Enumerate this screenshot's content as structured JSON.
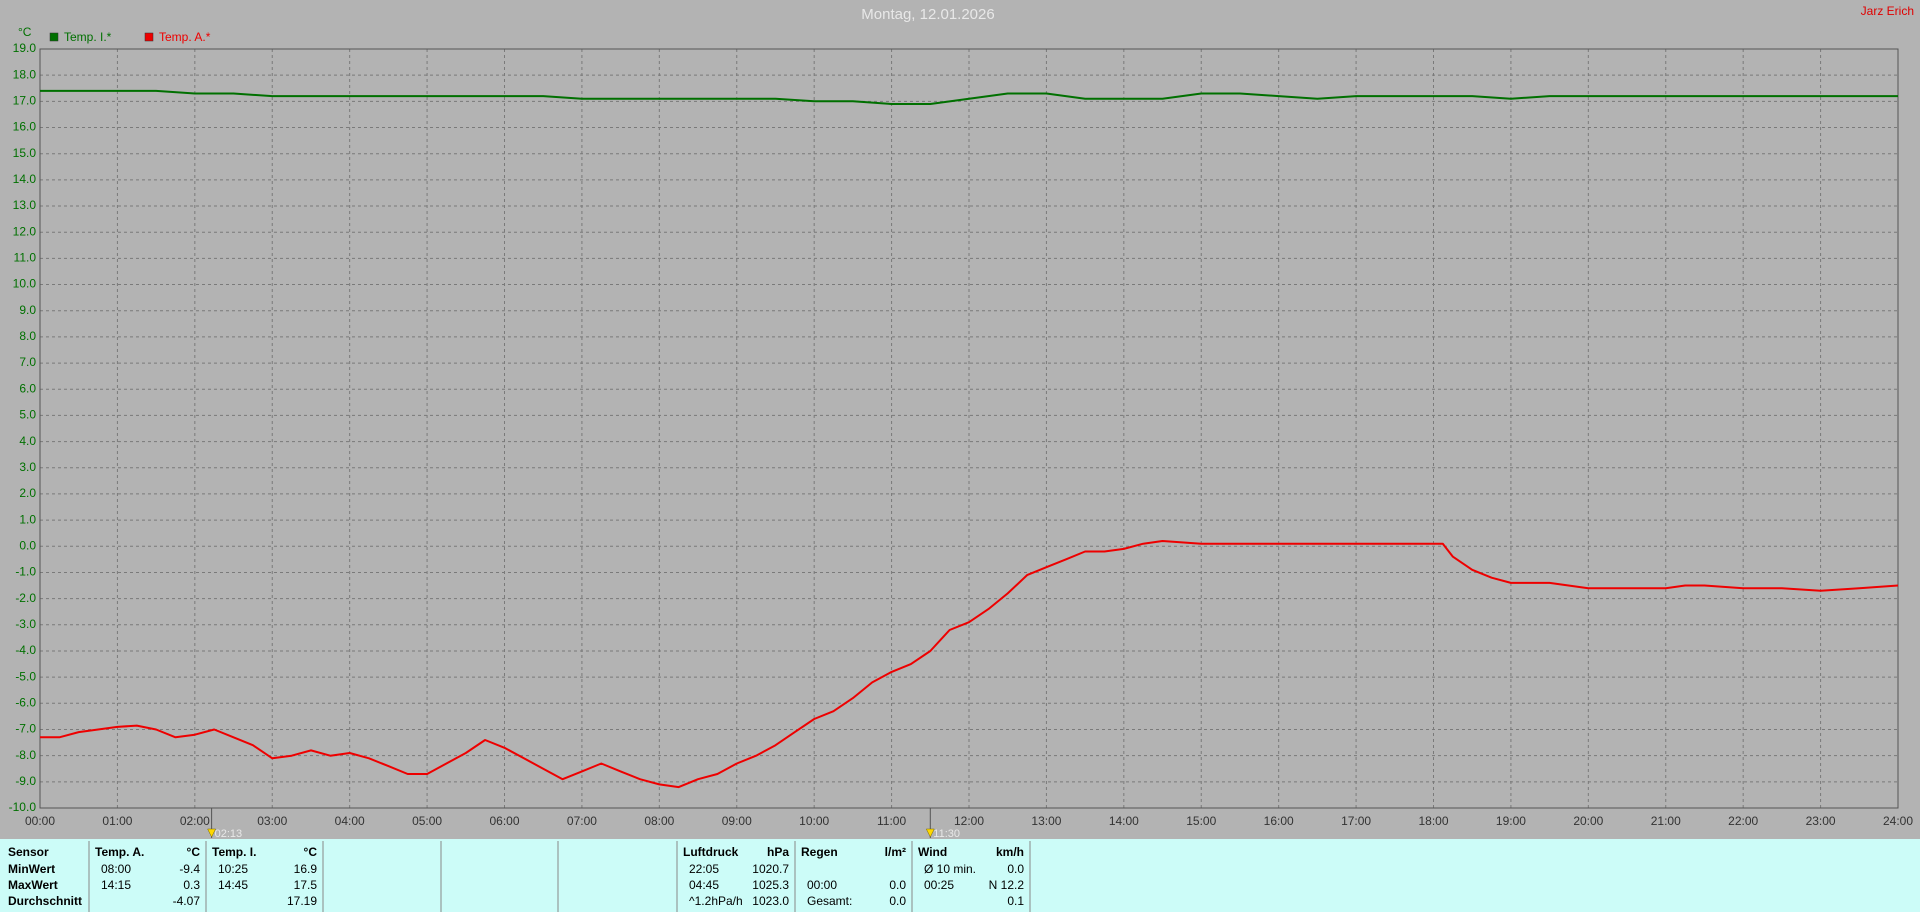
{
  "chart_data": {
    "type": "line",
    "title": "Montag, 12.01.2026",
    "corner_text": "Jarz Erich",
    "y_label": "°C",
    "grid": true,
    "legend": "top-left",
    "xlim": [
      0,
      24
    ],
    "ylim": [
      -10,
      19
    ],
    "xticks": [
      {
        "value": 0,
        "label": "00:00"
      },
      {
        "value": 1,
        "label": "01:00"
      },
      {
        "value": 2,
        "label": "02:00"
      },
      {
        "value": 3,
        "label": "03:00"
      },
      {
        "value": 4,
        "label": "04:00"
      },
      {
        "value": 5,
        "label": "05:00"
      },
      {
        "value": 6,
        "label": "06:00"
      },
      {
        "value": 7,
        "label": "07:00"
      },
      {
        "value": 8,
        "label": "08:00"
      },
      {
        "value": 9,
        "label": "09:00"
      },
      {
        "value": 10,
        "label": "10:00"
      },
      {
        "value": 11,
        "label": "11:00"
      },
      {
        "value": 12,
        "label": "12:00"
      },
      {
        "value": 13,
        "label": "13:00"
      },
      {
        "value": 14,
        "label": "14:00"
      },
      {
        "value": 15,
        "label": "15:00"
      },
      {
        "value": 16,
        "label": "16:00"
      },
      {
        "value": 17,
        "label": "17:00"
      },
      {
        "value": 18,
        "label": "18:00"
      },
      {
        "value": 19,
        "label": "19:00"
      },
      {
        "value": 20,
        "label": "20:00"
      },
      {
        "value": 21,
        "label": "21:00"
      },
      {
        "value": 22,
        "label": "22:00"
      },
      {
        "value": 23,
        "label": "23:00"
      },
      {
        "value": 24,
        "label": "24:00"
      }
    ],
    "yticks": [
      {
        "value": -10,
        "label": "-10.0"
      },
      {
        "value": -9,
        "label": "-9.0"
      },
      {
        "value": -8,
        "label": "-8.0"
      },
      {
        "value": -7,
        "label": "-7.0"
      },
      {
        "value": -6,
        "label": "-6.0"
      },
      {
        "value": -5,
        "label": "-5.0"
      },
      {
        "value": -4,
        "label": "-4.0"
      },
      {
        "value": -3,
        "label": "-3.0"
      },
      {
        "value": -2,
        "label": "-2.0"
      },
      {
        "value": -1,
        "label": "-1.0"
      },
      {
        "value": 0,
        "label": "0.0"
      },
      {
        "value": 1,
        "label": "1.0"
      },
      {
        "value": 2,
        "label": "2.0"
      },
      {
        "value": 3,
        "label": "3.0"
      },
      {
        "value": 4,
        "label": "4.0"
      },
      {
        "value": 5,
        "label": "5.0"
      },
      {
        "value": 6,
        "label": "6.0"
      },
      {
        "value": 7,
        "label": "7.0"
      },
      {
        "value": 8,
        "label": "8.0"
      },
      {
        "value": 9,
        "label": "9.0"
      },
      {
        "value": 10,
        "label": "10.0"
      },
      {
        "value": 11,
        "label": "11.0"
      },
      {
        "value": 12,
        "label": "12.0"
      },
      {
        "value": 13,
        "label": "13.0"
      },
      {
        "value": 14,
        "label": "14.0"
      },
      {
        "value": 15,
        "label": "15.0"
      },
      {
        "value": 16,
        "label": "16.0"
      },
      {
        "value": 17,
        "label": "17.0"
      },
      {
        "value": 18,
        "label": "18.0"
      },
      {
        "value": 19,
        "label": "19.0"
      }
    ],
    "markers": [
      {
        "x": 2.2167,
        "label": "02:13"
      },
      {
        "x": 11.5,
        "label": "11:30"
      }
    ],
    "series": [
      {
        "name": "Temp. I.*",
        "color": "#007000",
        "x": [
          0,
          0.5,
          1,
          1.5,
          2,
          2.5,
          3,
          3.5,
          4,
          4.5,
          5,
          5.5,
          6,
          6.5,
          7,
          7.5,
          8,
          8.5,
          9,
          9.5,
          10,
          10.5,
          11,
          11.5,
          12,
          12.5,
          13,
          13.5,
          14,
          14.5,
          15,
          15.5,
          16,
          16.5,
          17,
          17.5,
          18,
          18.5,
          19,
          19.5,
          20,
          20.5,
          21,
          21.5,
          22,
          22.5,
          23,
          23.5,
          24
        ],
        "values": [
          17.4,
          17.4,
          17.4,
          17.4,
          17.3,
          17.3,
          17.2,
          17.2,
          17.2,
          17.2,
          17.2,
          17.2,
          17.2,
          17.2,
          17.1,
          17.1,
          17.1,
          17.1,
          17.1,
          17.1,
          17.0,
          17.0,
          16.9,
          16.9,
          17.1,
          17.3,
          17.3,
          17.1,
          17.1,
          17.1,
          17.3,
          17.3,
          17.2,
          17.1,
          17.2,
          17.2,
          17.2,
          17.2,
          17.1,
          17.2,
          17.2,
          17.2,
          17.2,
          17.2,
          17.2,
          17.2,
          17.2,
          17.2,
          17.2
        ]
      },
      {
        "name": "Temp. A.*",
        "color": "#ee0000",
        "x": [
          0,
          0.25,
          0.5,
          0.75,
          1,
          1.25,
          1.5,
          1.75,
          2,
          2.25,
          2.5,
          2.75,
          3,
          3.25,
          3.5,
          3.75,
          4,
          4.25,
          4.5,
          4.75,
          5,
          5.25,
          5.5,
          5.75,
          6,
          6.25,
          6.5,
          6.75,
          7,
          7.25,
          7.5,
          7.75,
          8,
          8.25,
          8.5,
          8.75,
          9,
          9.25,
          9.5,
          9.75,
          10,
          10.25,
          10.5,
          10.75,
          11,
          11.25,
          11.5,
          11.75,
          12,
          12.25,
          12.5,
          12.75,
          13,
          13.25,
          13.5,
          13.75,
          14,
          14.25,
          14.5,
          15,
          16,
          17,
          18,
          18.12,
          18.25,
          18.5,
          18.75,
          19,
          19.5,
          20,
          20.5,
          21,
          21.25,
          21.5,
          22,
          22.5,
          23,
          23.5,
          24
        ],
        "values": [
          -7.3,
          -7.3,
          -7.1,
          -7.0,
          -6.9,
          -6.85,
          -7.0,
          -7.3,
          -7.2,
          -7.0,
          -7.3,
          -7.6,
          -8.1,
          -8.0,
          -7.8,
          -8.0,
          -7.9,
          -8.1,
          -8.4,
          -8.7,
          -8.7,
          -8.3,
          -7.9,
          -7.4,
          -7.7,
          -8.1,
          -8.5,
          -8.9,
          -8.6,
          -8.3,
          -8.6,
          -8.9,
          -9.1,
          -9.2,
          -8.9,
          -8.7,
          -8.3,
          -8.0,
          -7.6,
          -7.1,
          -6.6,
          -6.3,
          -5.8,
          -5.2,
          -4.8,
          -4.5,
          -4.0,
          -3.2,
          -2.9,
          -2.4,
          -1.8,
          -1.1,
          -0.8,
          -0.5,
          -0.2,
          -0.2,
          -0.1,
          0.1,
          0.2,
          0.1,
          0.1,
          0.1,
          0.1,
          0.1,
          -0.4,
          -0.9,
          -1.2,
          -1.4,
          -1.4,
          -1.6,
          -1.6,
          -1.6,
          -1.5,
          -1.5,
          -1.6,
          -1.6,
          -1.7,
          -1.6,
          -1.5
        ]
      }
    ]
  },
  "table": {
    "header": "Sensor",
    "row_labels": [
      "MinWert",
      "MaxWert",
      "Durchschnitt"
    ],
    "groups": [
      {
        "name": "Temp. A.",
        "unit": "°C",
        "rows": [
          [
            "08:00",
            "-9.4"
          ],
          [
            "14:15",
            "0.3"
          ],
          [
            null,
            "-4.07"
          ]
        ]
      },
      {
        "name": "Temp. I.",
        "unit": "°C",
        "rows": [
          [
            "10:25",
            "16.9"
          ],
          [
            "14:45",
            "17.5"
          ],
          [
            null,
            "17.19"
          ]
        ]
      },
      {
        "name": "Luftdruck",
        "unit": "hPa",
        "rows": [
          [
            "22:05",
            "1020.7"
          ],
          [
            "04:45",
            "1025.3"
          ],
          [
            "^1.2hPa/h",
            "1023.0"
          ]
        ]
      },
      {
        "name": "Regen",
        "unit": "l/m²",
        "rows": [
          [
            null,
            null
          ],
          [
            "00:00",
            "0.0"
          ],
          [
            "Gesamt:",
            "0.0"
          ]
        ]
      },
      {
        "name": "Wind",
        "unit": "km/h",
        "rows": [
          [
            "Ø 10 min.",
            "0.0"
          ],
          [
            "00:25",
            "N 12.2"
          ],
          [
            null,
            "0.1"
          ]
        ]
      }
    ]
  }
}
